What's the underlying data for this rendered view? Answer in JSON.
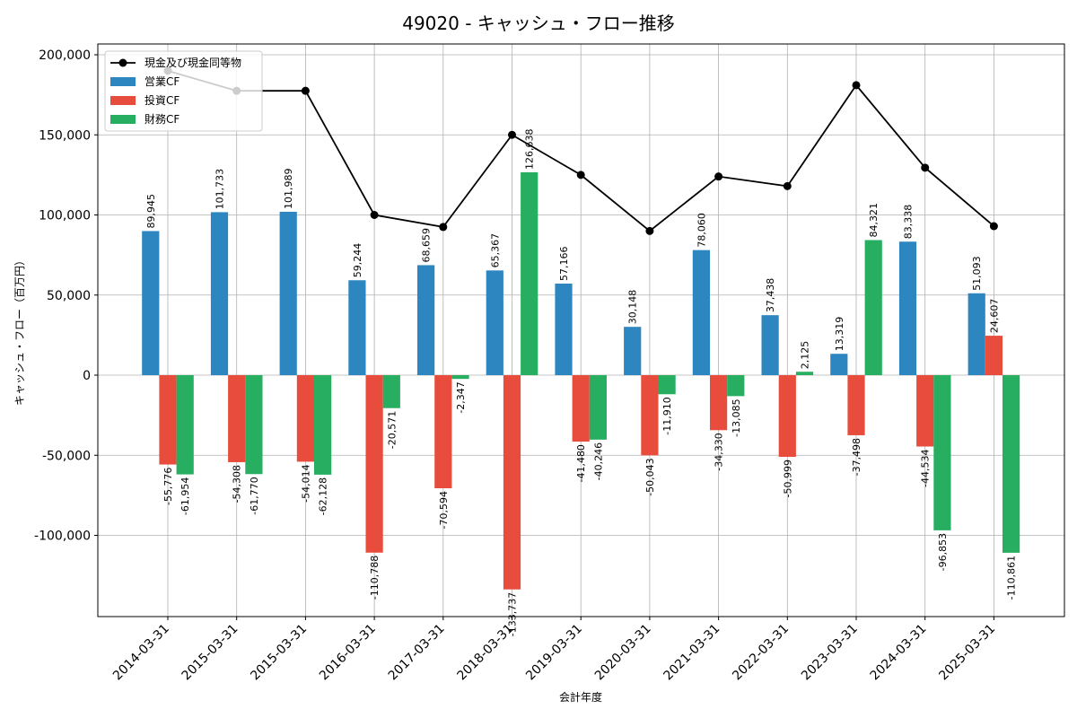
{
  "chart_data": {
    "type": "bar",
    "title": "49020 - キャッシュ・フロー推移",
    "xlabel": "会計年度",
    "ylabel": "キャッシュ・フロー（百万円）",
    "categories": [
      "2014-03-31",
      "2015-03-31",
      "2015-03-31",
      "2016-03-31",
      "2017-03-31",
      "2018-03-31",
      "2019-03-31",
      "2020-03-31",
      "2021-03-31",
      "2022-03-31",
      "2023-03-31",
      "2024-03-31",
      "2025-03-31"
    ],
    "ylim": [
      -150000,
      200000
    ],
    "yticks": [
      200000,
      150000,
      100000,
      50000,
      0,
      -50000,
      -100000
    ],
    "ytick_labels": [
      "200,000",
      "150,000",
      "100,000",
      "50,000",
      "0",
      "-50,000",
      "-100,000"
    ],
    "grid": true,
    "legend_position": "top-left",
    "series": [
      {
        "name": "営業CF",
        "kind": "bar",
        "color": "#2E86C1",
        "values": [
          89945,
          101733,
          101989,
          59244,
          68659,
          65367,
          57166,
          30148,
          78060,
          37438,
          13319,
          83338,
          51093
        ],
        "labels": [
          "89,945",
          "101,733",
          "101,989",
          "59,244",
          "68,659",
          "65,367",
          "57,166",
          "30,148",
          "78,060",
          "37,438",
          "13,319",
          "83,338",
          "51,093"
        ]
      },
      {
        "name": "投資CF",
        "kind": "bar",
        "color": "#E74C3C",
        "values": [
          -55776,
          -54308,
          -54014,
          -110788,
          -70594,
          -133737,
          -41480,
          -50043,
          -34330,
          -50999,
          -37498,
          -44534,
          24607
        ],
        "labels": [
          "-55,776",
          "-54,308",
          "-54,014",
          "-110,788",
          "-70,594",
          "-133,737",
          "-41,480",
          "-50,043",
          "-34,330",
          "-50,999",
          "-37,498",
          "-44,534",
          "24,607"
        ]
      },
      {
        "name": "財務CF",
        "kind": "bar",
        "color": "#27AE60",
        "values": [
          -61954,
          -61770,
          -62128,
          -20571,
          -2347,
          126638,
          -40246,
          -11910,
          -13085,
          2125,
          84321,
          -96853,
          -110861
        ],
        "labels": [
          "-61,954",
          "-61,770",
          "-62,128",
          "-20,571",
          "-2,347",
          "126,638",
          "-40,246",
          "-11,910",
          "-13,085",
          "2,125",
          "84,321",
          "-96,853",
          "-110,861"
        ]
      },
      {
        "name": "現金及び現金同等物",
        "kind": "line",
        "color": "#000000",
        "values": [
          190000,
          177500,
          177500,
          100000,
          92500,
          150000,
          125000,
          90000,
          124000,
          118000,
          181000,
          129500,
          93000
        ]
      }
    ]
  }
}
